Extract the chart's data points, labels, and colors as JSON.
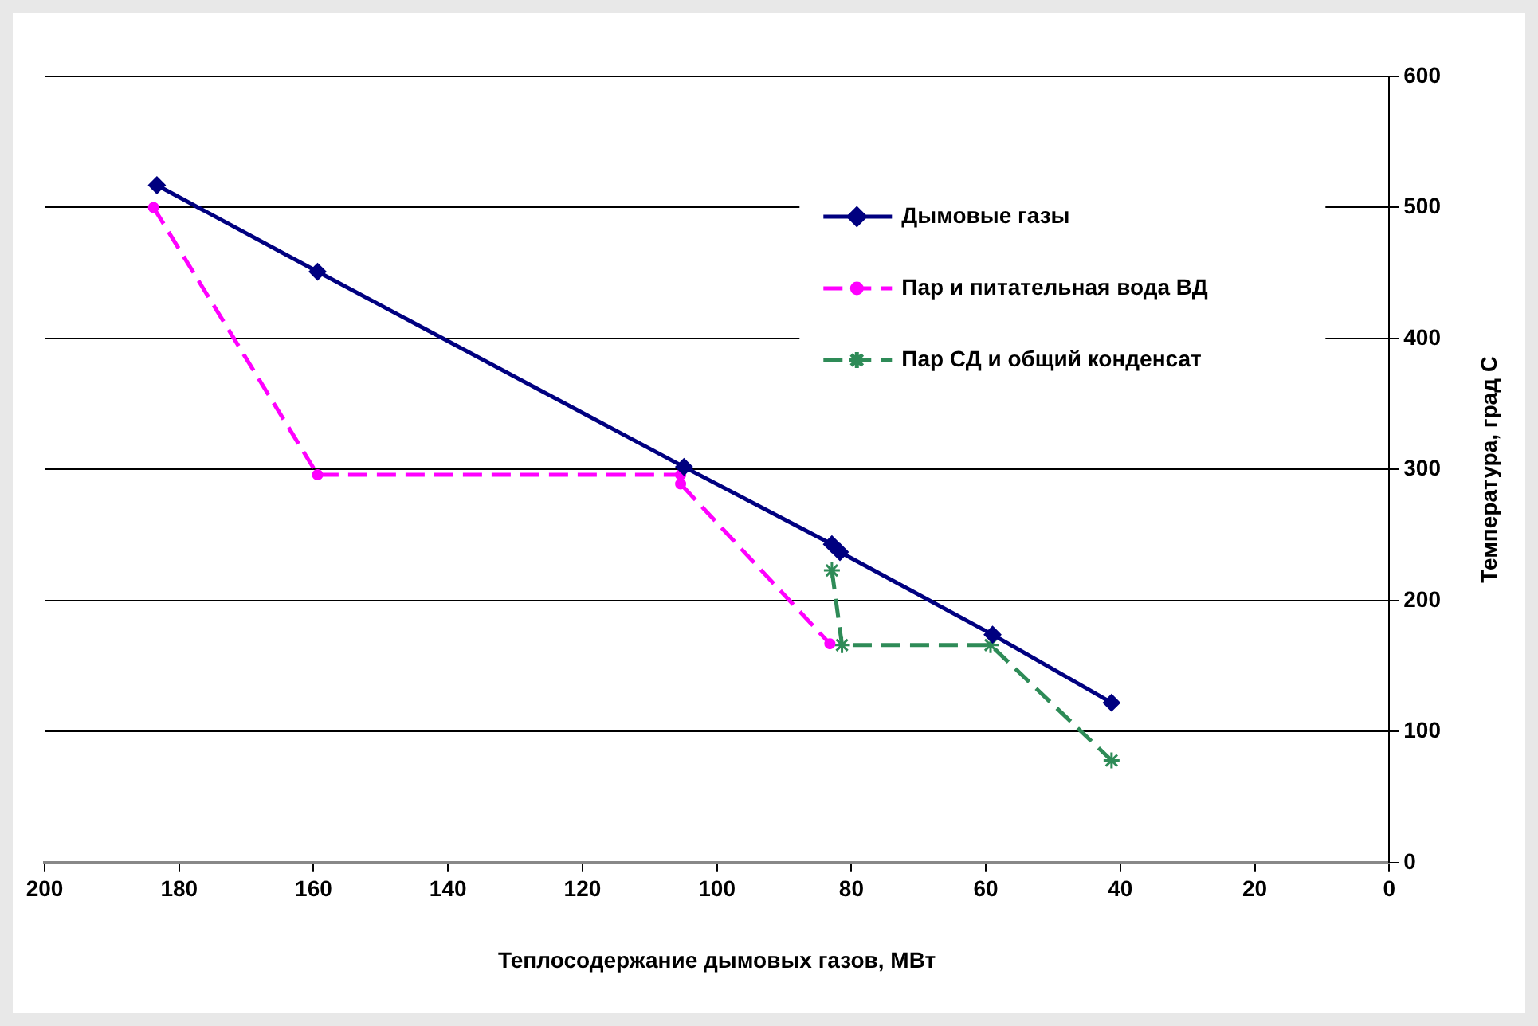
{
  "chart_data": {
    "type": "line",
    "xlabel": "Теплосодержание дымовых газов, МВт",
    "ylabel": "Температура, град С",
    "xlim": [
      200,
      0
    ],
    "xticks": [
      200,
      180,
      160,
      140,
      120,
      100,
      80,
      60,
      40,
      20,
      0
    ],
    "ylim": [
      0,
      600
    ],
    "yticks": [
      0,
      100,
      200,
      300,
      400,
      500,
      600
    ],
    "grid": "y",
    "legend": "top right",
    "series": [
      {
        "name": "Дымовые газы",
        "color": "#000080",
        "marker": "diamond",
        "line_style": "solid",
        "x": [
          183.3,
          159.4,
          104.9,
          82.9,
          81.7,
          59.0,
          41.3
        ],
        "values": [
          517,
          451,
          302,
          243,
          237,
          174,
          122
        ]
      },
      {
        "name": "Пар и питательная вода ВД",
        "color": "#ff00ff",
        "marker": "circle",
        "line_style": "dashed",
        "x": [
          183.8,
          159.4,
          105.4,
          105.4,
          83.2
        ],
        "values": [
          500,
          296,
          296,
          289,
          167
        ]
      },
      {
        "name": "Пар СД и общий конденсат",
        "color": "#2e8b57",
        "marker": "cross",
        "line_style": "dashed",
        "x": [
          82.9,
          81.4,
          59.3,
          41.3
        ],
        "values": [
          223,
          166,
          166,
          78
        ]
      }
    ]
  }
}
